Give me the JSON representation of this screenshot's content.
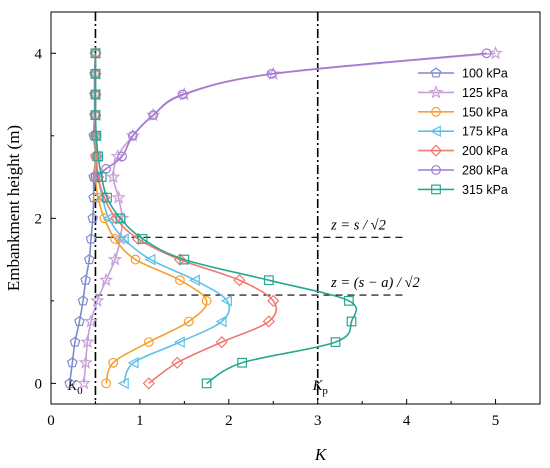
{
  "chart_data": {
    "type": "line",
    "xlabel": "K",
    "ylabel": "Embankment height (m)",
    "xlim": [
      0,
      5.5
    ],
    "ylim": [
      -0.25,
      4.5
    ],
    "xticks": [
      "0",
      "1",
      "2",
      "3",
      "4",
      "5"
    ],
    "yticks": [
      "0",
      "2",
      "4"
    ],
    "legend_position": "right",
    "grid": false,
    "vlines": [
      {
        "x": 0.5,
        "label_main": "K",
        "label_sub": "0"
      },
      {
        "x": 3.0,
        "label_main": "K",
        "label_sub": "p"
      }
    ],
    "hlines": [
      {
        "y": 1.77,
        "label": "z = s / √2"
      },
      {
        "y": 1.07,
        "label": "z = (s − a) / √2"
      }
    ],
    "series": [
      {
        "name": "100 kPa",
        "color": "#7f8ccc",
        "marker": "pentagon",
        "points": [
          [
            0.21,
            0.0
          ],
          [
            0.24,
            0.25
          ],
          [
            0.27,
            0.5
          ],
          [
            0.32,
            0.75
          ],
          [
            0.36,
            1.0
          ],
          [
            0.39,
            1.25
          ],
          [
            0.43,
            1.5
          ],
          [
            0.45,
            1.75
          ],
          [
            0.47,
            2.0
          ],
          [
            0.48,
            2.25
          ],
          [
            0.48,
            2.5
          ],
          [
            0.5,
            2.75
          ],
          [
            0.48,
            3.0
          ],
          [
            0.49,
            3.25
          ],
          [
            0.49,
            3.5
          ],
          [
            0.49,
            3.75
          ],
          [
            0.5,
            4.0
          ]
        ]
      },
      {
        "name": "125 kPa",
        "color": "#c8a0d8",
        "marker": "star",
        "points": [
          [
            0.37,
            0.0
          ],
          [
            0.39,
            0.25
          ],
          [
            0.41,
            0.5
          ],
          [
            0.45,
            0.75
          ],
          [
            0.52,
            1.0
          ],
          [
            0.62,
            1.25
          ],
          [
            0.72,
            1.5
          ],
          [
            0.78,
            1.75
          ],
          [
            0.8,
            2.0
          ],
          [
            0.76,
            2.25
          ],
          [
            0.7,
            2.5
          ],
          [
            0.75,
            2.75
          ],
          [
            0.92,
            3.0
          ],
          [
            1.15,
            3.25
          ],
          [
            1.5,
            3.5
          ],
          [
            2.5,
            3.75
          ],
          [
            5.0,
            4.0
          ]
        ]
      },
      {
        "name": "150 kPa",
        "color": "#f5a030",
        "marker": "circle",
        "points": [
          [
            0.62,
            0.0
          ],
          [
            0.7,
            0.25
          ],
          [
            1.1,
            0.5
          ],
          [
            1.55,
            0.75
          ],
          [
            1.75,
            1.0
          ],
          [
            1.45,
            1.25
          ],
          [
            0.95,
            1.5
          ],
          [
            0.72,
            1.75
          ],
          [
            0.6,
            2.0
          ],
          [
            0.53,
            2.25
          ],
          [
            0.5,
            2.5
          ],
          [
            0.5,
            2.75
          ],
          [
            0.5,
            3.0
          ],
          [
            0.5,
            3.25
          ],
          [
            0.5,
            3.5
          ],
          [
            0.5,
            3.75
          ],
          [
            0.5,
            4.0
          ]
        ]
      },
      {
        "name": "175 kPa",
        "color": "#5cc0e8",
        "marker": "triangle-left",
        "points": [
          [
            0.82,
            0.0
          ],
          [
            0.93,
            0.25
          ],
          [
            1.45,
            0.5
          ],
          [
            1.92,
            0.75
          ],
          [
            1.98,
            1.0
          ],
          [
            1.62,
            1.25
          ],
          [
            1.12,
            1.5
          ],
          [
            0.82,
            1.75
          ],
          [
            0.65,
            2.0
          ],
          [
            0.58,
            2.25
          ],
          [
            0.53,
            2.5
          ],
          [
            0.51,
            2.75
          ],
          [
            0.5,
            3.0
          ],
          [
            0.5,
            3.25
          ],
          [
            0.5,
            3.5
          ],
          [
            0.5,
            3.75
          ],
          [
            0.5,
            4.0
          ]
        ]
      },
      {
        "name": "200 kPa",
        "color": "#f07870",
        "marker": "diamond",
        "points": [
          [
            1.1,
            0.0
          ],
          [
            1.42,
            0.25
          ],
          [
            1.92,
            0.5
          ],
          [
            2.45,
            0.75
          ],
          [
            2.5,
            1.0
          ],
          [
            2.12,
            1.25
          ],
          [
            1.45,
            1.5
          ],
          [
            0.98,
            1.75
          ],
          [
            0.73,
            2.0
          ],
          [
            0.6,
            2.25
          ],
          [
            0.53,
            2.5
          ],
          [
            0.51,
            2.75
          ],
          [
            0.5,
            3.0
          ],
          [
            0.5,
            3.25
          ],
          [
            0.5,
            3.5
          ],
          [
            0.5,
            3.75
          ],
          [
            0.5,
            4.0
          ]
        ]
      },
      {
        "name": "280 kPa",
        "color": "#a07ad0",
        "marker": "circle",
        "points": [
          [
            0.5,
            2.5
          ],
          [
            0.62,
            2.6
          ],
          [
            0.8,
            2.75
          ],
          [
            0.92,
            3.0
          ],
          [
            1.15,
            3.25
          ],
          [
            1.48,
            3.5
          ],
          [
            2.48,
            3.75
          ],
          [
            4.9,
            4.0
          ]
        ]
      },
      {
        "name": "315 kPa",
        "color": "#28a890",
        "marker": "square",
        "points": [
          [
            1.75,
            0.0
          ],
          [
            2.15,
            0.25
          ],
          [
            3.2,
            0.5
          ],
          [
            3.38,
            0.75
          ],
          [
            3.35,
            1.0
          ],
          [
            2.45,
            1.25
          ],
          [
            1.5,
            1.5
          ],
          [
            1.03,
            1.75
          ],
          [
            0.78,
            2.0
          ],
          [
            0.63,
            2.25
          ],
          [
            0.57,
            2.5
          ],
          [
            0.53,
            2.75
          ],
          [
            0.51,
            3.0
          ],
          [
            0.5,
            3.25
          ],
          [
            0.5,
            3.5
          ],
          [
            0.5,
            3.75
          ],
          [
            0.5,
            4.0
          ]
        ]
      }
    ]
  }
}
